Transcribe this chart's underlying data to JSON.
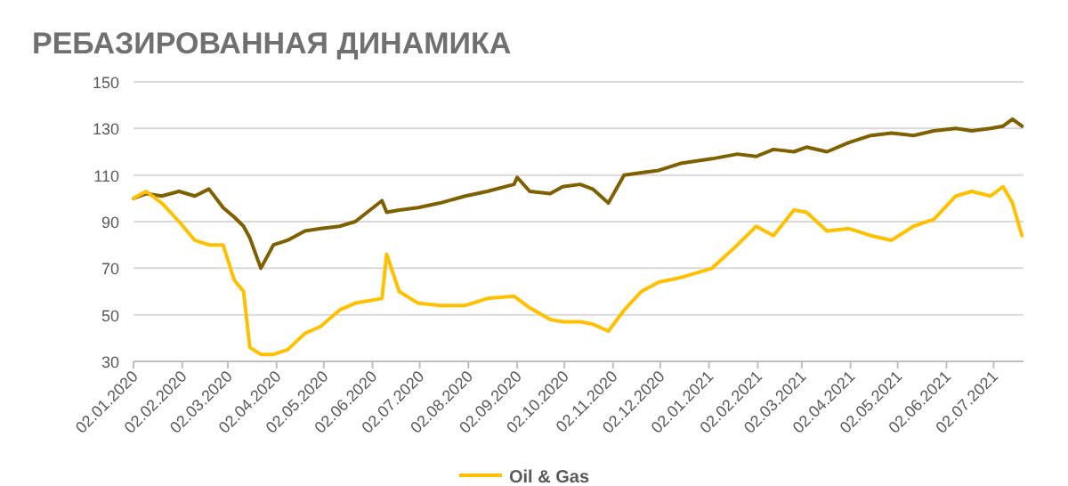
{
  "chart_data": {
    "type": "line",
    "title": "РЕБАЗИРОВАННАЯ ДИНАМИКА",
    "x": [
      "2020-01-02",
      "2020-01-10",
      "2020-01-20",
      "2020-01-31",
      "2020-02-10",
      "2020-02-19",
      "2020-02-28",
      "2020-03-06",
      "2020-03-12",
      "2020-03-16",
      "2020-03-23",
      "2020-03-31",
      "2020-04-09",
      "2020-04-20",
      "2020-04-30",
      "2020-05-12",
      "2020-05-22",
      "2020-06-08",
      "2020-06-11",
      "2020-06-19",
      "2020-07-01",
      "2020-07-15",
      "2020-07-31",
      "2020-08-14",
      "2020-08-31",
      "2020-09-02",
      "2020-09-10",
      "2020-09-23",
      "2020-10-01",
      "2020-10-12",
      "2020-10-20",
      "2020-10-30",
      "2020-11-09",
      "2020-11-20",
      "2020-12-01",
      "2020-12-15",
      "2021-01-04",
      "2021-01-20",
      "2021-02-01",
      "2021-02-12",
      "2021-02-25",
      "2021-03-05",
      "2021-03-18",
      "2021-04-01",
      "2021-04-15",
      "2021-04-28",
      "2021-05-12",
      "2021-05-25",
      "2021-06-08",
      "2021-06-18",
      "2021-06-30",
      "2021-07-08",
      "2021-07-14",
      "2021-07-20"
    ],
    "series": [
      {
        "color": "#7f6000",
        "values": [
          100,
          102,
          101,
          103,
          101,
          104,
          96,
          92,
          88,
          83,
          70,
          80,
          82,
          86,
          87,
          88,
          90,
          99,
          94,
          95,
          96,
          98,
          101,
          103,
          106,
          109,
          103,
          102,
          105,
          106,
          104,
          98,
          110,
          111,
          112,
          115,
          117,
          119,
          118,
          121,
          120,
          122,
          120,
          124,
          127,
          128,
          127,
          129,
          130,
          129,
          130,
          131,
          134,
          131
        ]
      },
      {
        "name": "Oil & Gas",
        "color": "#ffc000",
        "values": [
          100,
          103,
          98,
          90,
          82,
          80,
          80,
          65,
          60,
          36,
          33,
          33,
          35,
          42,
          45,
          52,
          55,
          57,
          76,
          60,
          55,
          54,
          54,
          57,
          58,
          57,
          53,
          48,
          47,
          47,
          46,
          43,
          52,
          60,
          64,
          66,
          70,
          80,
          88,
          84,
          95,
          94,
          86,
          87,
          84,
          82,
          88,
          91,
          101,
          103,
          101,
          105,
          98,
          84
        ]
      }
    ],
    "xlim": [
      "2020-01-02",
      "2021-07-21"
    ],
    "xticks": [
      {
        "value": "2020-01-02",
        "label": "02.01.2020"
      },
      {
        "value": "2020-02-02",
        "label": "02.02.2020"
      },
      {
        "value": "2020-03-02",
        "label": "02.03.2020"
      },
      {
        "value": "2020-04-02",
        "label": "02.04.2020"
      },
      {
        "value": "2020-05-02",
        "label": "02.05.2020"
      },
      {
        "value": "2020-06-02",
        "label": "02.06.2020"
      },
      {
        "value": "2020-07-02",
        "label": "02.07.2020"
      },
      {
        "value": "2020-08-02",
        "label": "02.08.2020"
      },
      {
        "value": "2020-09-02",
        "label": "02.09.2020"
      },
      {
        "value": "2020-10-02",
        "label": "02.10.2020"
      },
      {
        "value": "2020-11-02",
        "label": "02.11.2020"
      },
      {
        "value": "2020-12-02",
        "label": "02.12.2020"
      },
      {
        "value": "2021-01-02",
        "label": "02.01.2021"
      },
      {
        "value": "2021-02-02",
        "label": "02.02.2021"
      },
      {
        "value": "2021-03-02",
        "label": "02.03.2021"
      },
      {
        "value": "2021-04-02",
        "label": "02.04.2021"
      },
      {
        "value": "2021-05-02",
        "label": "02.05.2021"
      },
      {
        "value": "2021-06-02",
        "label": "02.06.2021"
      },
      {
        "value": "2021-07-02",
        "label": "02.07.2021"
      }
    ],
    "ylim": [
      30,
      150
    ],
    "yticks": [
      30,
      50,
      70,
      90,
      110,
      130,
      150
    ],
    "grid": "y",
    "legend": "bottom",
    "marker": "none",
    "line_style": "solid"
  }
}
